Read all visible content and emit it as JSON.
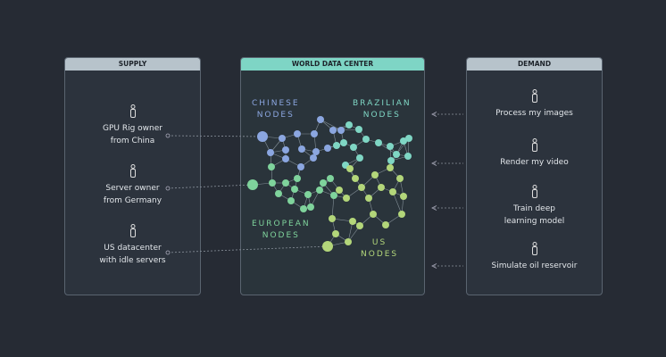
{
  "supply": {
    "title": "SUPPLY",
    "items": [
      "GPU Rig owner\nfrom China",
      "Server owner\nfrom Germany",
      "US datacenter\nwith idle servers"
    ]
  },
  "center": {
    "title": "WORLD DATA CENTER",
    "regions": {
      "chinese": "CHINESE\nNODES",
      "brazilian": "BRAZILIAN\nNODES",
      "european": "EUROPEAN\nNODES",
      "us": "US\nNODES"
    }
  },
  "demand": {
    "title": "DEMAND",
    "items": [
      "Process my images",
      "Render my video",
      "Train deep\nlearning model",
      "Simulate oil reservoir"
    ]
  },
  "colors": {
    "background": "#262b34",
    "supply_header": "#b7c3cb",
    "center_header": "#7ed5c5",
    "chinese": "#8ba6e0",
    "brazilian": "#7fd6c4",
    "european": "#7fd39c",
    "us": "#b3d67a"
  },
  "icons": {
    "person": "person-icon"
  }
}
